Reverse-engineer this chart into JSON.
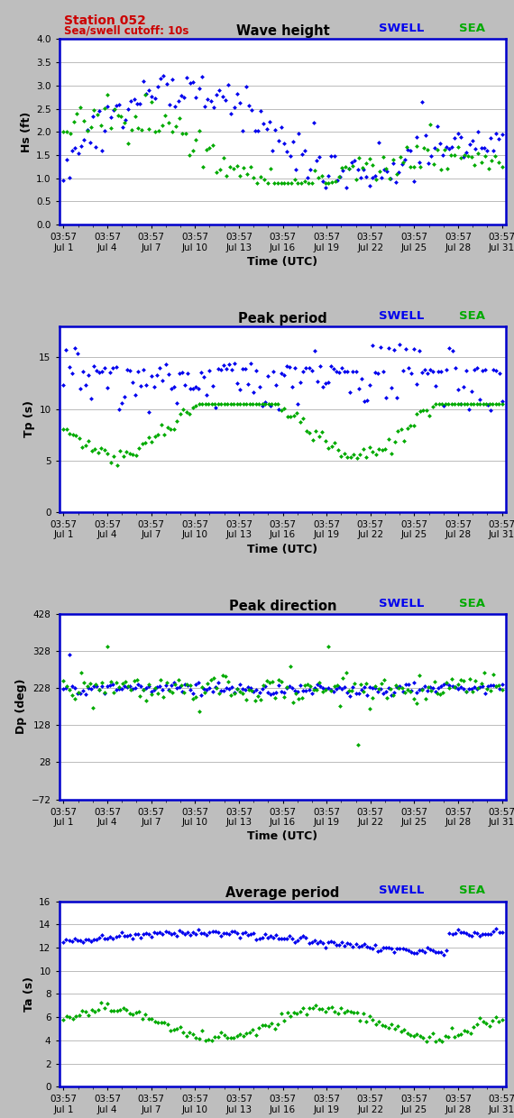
{
  "title_station": "Station 052",
  "title_cutoff": "Sea/swell cutoff: 10s",
  "swell_color": "#0000EE",
  "sea_color": "#00AA00",
  "bg_color": "#BEBEBE",
  "plot_bg": "#FFFFFF",
  "border_color": "#0000CC",
  "panels": [
    {
      "title": "Wave height",
      "ylabel": "Hs (ft)",
      "ylim": [
        0.0,
        4.0
      ],
      "yticks": [
        0.0,
        0.5,
        1.0,
        1.5,
        2.0,
        2.5,
        3.0,
        3.5,
        4.0
      ],
      "show_station_title": true
    },
    {
      "title": "Peak period",
      "ylabel": "Tp (s)",
      "ylim": [
        0,
        18
      ],
      "yticks": [
        0,
        5,
        10,
        15
      ],
      "show_station_title": false
    },
    {
      "title": "Peak direction",
      "ylabel": "Dp (deg)",
      "ylim": [
        -72,
        428
      ],
      "yticks": [
        -72,
        28,
        128,
        228,
        328,
        428
      ],
      "show_station_title": false
    },
    {
      "title": "Average period",
      "ylabel": "Ta (s)",
      "ylim": [
        0,
        16
      ],
      "yticks": [
        0,
        2,
        4,
        6,
        8,
        10,
        12,
        14,
        16
      ],
      "show_station_title": false
    }
  ],
  "xtick_labels": [
    "03:57\nJul 1",
    "03:57\nJul 4",
    "03:57\nJul 7",
    "03:57\nJul 10",
    "03:57\nJul 13",
    "03:57\nJul 16",
    "03:57\nJul 19",
    "03:57\nJul 22",
    "03:57\nJul 25",
    "03:57\nJul 28",
    "03:57\nJul 31"
  ],
  "xtick_positions": [
    0,
    3,
    6,
    9,
    12,
    15,
    18,
    21,
    24,
    27,
    30
  ],
  "xlabel": "Time (UTC)",
  "xlim": [
    -0.3,
    30.3
  ]
}
